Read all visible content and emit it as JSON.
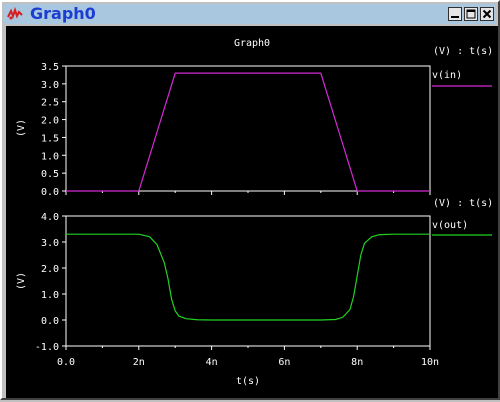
{
  "window": {
    "title": "Graph0",
    "buttons": {
      "minimize": "minimize",
      "maximize": "maximize",
      "close": "close"
    }
  },
  "graph": {
    "title": "Graph0",
    "xlabel": "t(s)",
    "x_ticks": [
      "0.0",
      "2n",
      "4n",
      "6n",
      "8n",
      "10n"
    ]
  },
  "colors": {
    "background": "#000000",
    "axes": "#ffffff",
    "text": "#ffffff",
    "vin": "#d22ad2",
    "vout": "#22d222"
  },
  "chart_data": [
    {
      "type": "line",
      "title": "Graph0",
      "legend_header": "(V) : t(s)",
      "ylabel": "(V)",
      "xlabel": "",
      "xlim": [
        0,
        10
      ],
      "ylim": [
        0,
        3.5
      ],
      "x_ticks": [
        "0.0",
        "2n",
        "4n",
        "6n",
        "8n",
        "10n"
      ],
      "y_ticks": [
        "0.0",
        "0.5",
        "1.0",
        "1.5",
        "2.0",
        "2.5",
        "3.0",
        "3.5"
      ],
      "series": [
        {
          "name": "v(in)",
          "color": "#d22ad2",
          "x": [
            0,
            2,
            3,
            7,
            8,
            10
          ],
          "y": [
            0,
            0,
            3.3,
            3.3,
            0,
            0
          ]
        }
      ]
    },
    {
      "type": "line",
      "title": "",
      "legend_header": "(V) : t(s)",
      "ylabel": "(V)",
      "xlabel": "t(s)",
      "xlim": [
        0,
        10
      ],
      "ylim": [
        -1,
        4
      ],
      "x_ticks": [
        "0.0",
        "2n",
        "4n",
        "6n",
        "8n",
        "10n"
      ],
      "y_ticks": [
        "-1.0",
        "0.0",
        "1.0",
        "2.0",
        "3.0",
        "4.0"
      ],
      "series": [
        {
          "name": "v(out)",
          "color": "#22d222",
          "x": [
            0,
            2.0,
            2.3,
            2.5,
            2.7,
            2.8,
            2.9,
            3.0,
            3.1,
            3.3,
            3.6,
            4.0,
            7.0,
            7.4,
            7.6,
            7.8,
            7.9,
            8.0,
            8.1,
            8.2,
            8.4,
            8.6,
            9.0,
            10
          ],
          "y": [
            3.3,
            3.3,
            3.2,
            2.9,
            2.2,
            1.6,
            0.8,
            0.35,
            0.15,
            0.05,
            0.01,
            0,
            0,
            0.02,
            0.1,
            0.4,
            0.9,
            1.7,
            2.5,
            2.95,
            3.2,
            3.28,
            3.3,
            3.3
          ]
        }
      ]
    }
  ]
}
